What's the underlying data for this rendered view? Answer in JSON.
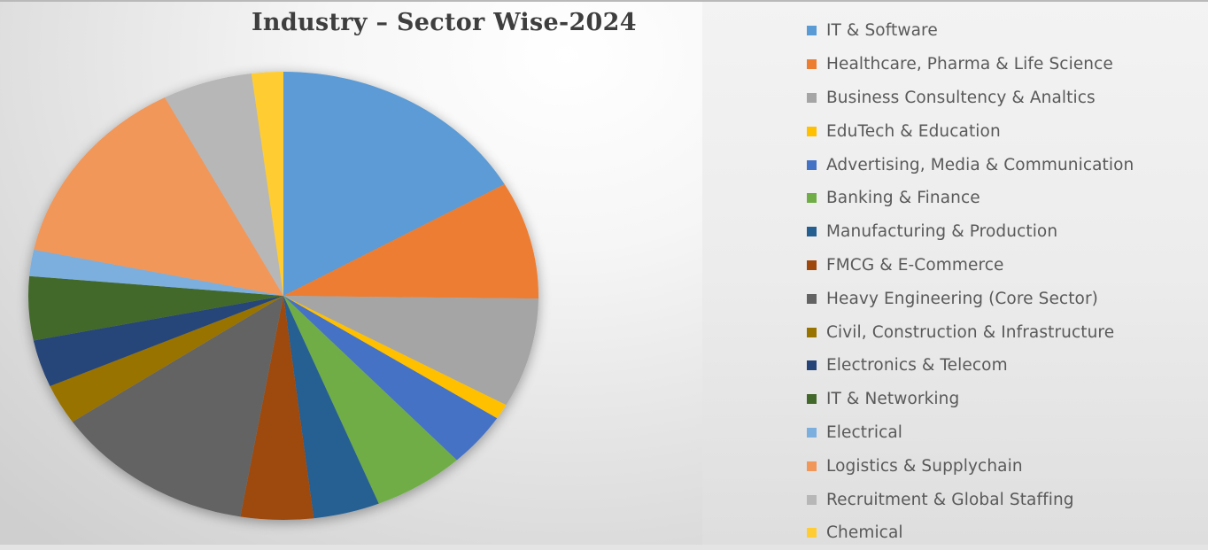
{
  "chart_data": {
    "type": "pie",
    "title": "Industry – Sector Wise-2024",
    "unit": "percent (estimated from slice angles)",
    "start_angle_deg": 0,
    "direction": "clockwise",
    "legend_position": "right",
    "categories": [
      "IT & Software",
      "Healthcare, Pharma & Life Science",
      "Business Consultency & Analtics",
      "EduTech & Education",
      "Advertising, Media & Communication",
      "Banking & Finance",
      "Manufacturing & Production",
      "FMCG & E-Commerce",
      "Heavy Engineering (Core Sector)",
      "Civil, Construction & Infrastructure",
      "Electronics & Telecom",
      "IT & Networking",
      "Electrical",
      "Logistics & Supplychain",
      "Recruitment & Global Staffing",
      "Chemical"
    ],
    "values": [
      16.7,
      8.5,
      7.9,
      1.1,
      3.9,
      5.8,
      4.2,
      4.6,
      12.8,
      2.9,
      3.4,
      4.6,
      1.9,
      14.0,
      5.7,
      2.0
    ],
    "colors": [
      "#5b9bd5",
      "#ed7d31",
      "#a5a5a5",
      "#ffc000",
      "#4472c4",
      "#70ad47",
      "#255e91",
      "#9e480e",
      "#636363",
      "#997300",
      "#264478",
      "#43682b",
      "#7cafdd",
      "#f1975a",
      "#b7b7b7",
      "#ffcd33"
    ]
  },
  "legend": {
    "items": [
      {
        "label": "IT & Software",
        "color": "#5b9bd5"
      },
      {
        "label": "Healthcare, Pharma & Life Science",
        "color": "#ed7d31"
      },
      {
        "label": "Business Consultency & Analtics",
        "color": "#a5a5a5"
      },
      {
        "label": "EduTech & Education",
        "color": "#ffc000"
      },
      {
        "label": "Advertising, Media & Communication",
        "color": "#4472c4"
      },
      {
        "label": "Banking & Finance",
        "color": "#70ad47"
      },
      {
        "label": "Manufacturing & Production",
        "color": "#255e91"
      },
      {
        "label": "FMCG & E-Commerce",
        "color": "#9e480e"
      },
      {
        "label": "Heavy Engineering (Core Sector)",
        "color": "#636363"
      },
      {
        "label": "Civil, Construction & Infrastructure",
        "color": "#997300"
      },
      {
        "label": "Electronics & Telecom",
        "color": "#264478"
      },
      {
        "label": "IT & Networking",
        "color": "#43682b"
      },
      {
        "label": "Electrical",
        "color": "#7cafdd"
      },
      {
        "label": "Logistics & Supplychain",
        "color": "#f1975a"
      },
      {
        "label": "Recruitment & Global Staffing",
        "color": "#b7b7b7"
      },
      {
        "label": "Chemical",
        "color": "#ffcd33"
      }
    ]
  }
}
